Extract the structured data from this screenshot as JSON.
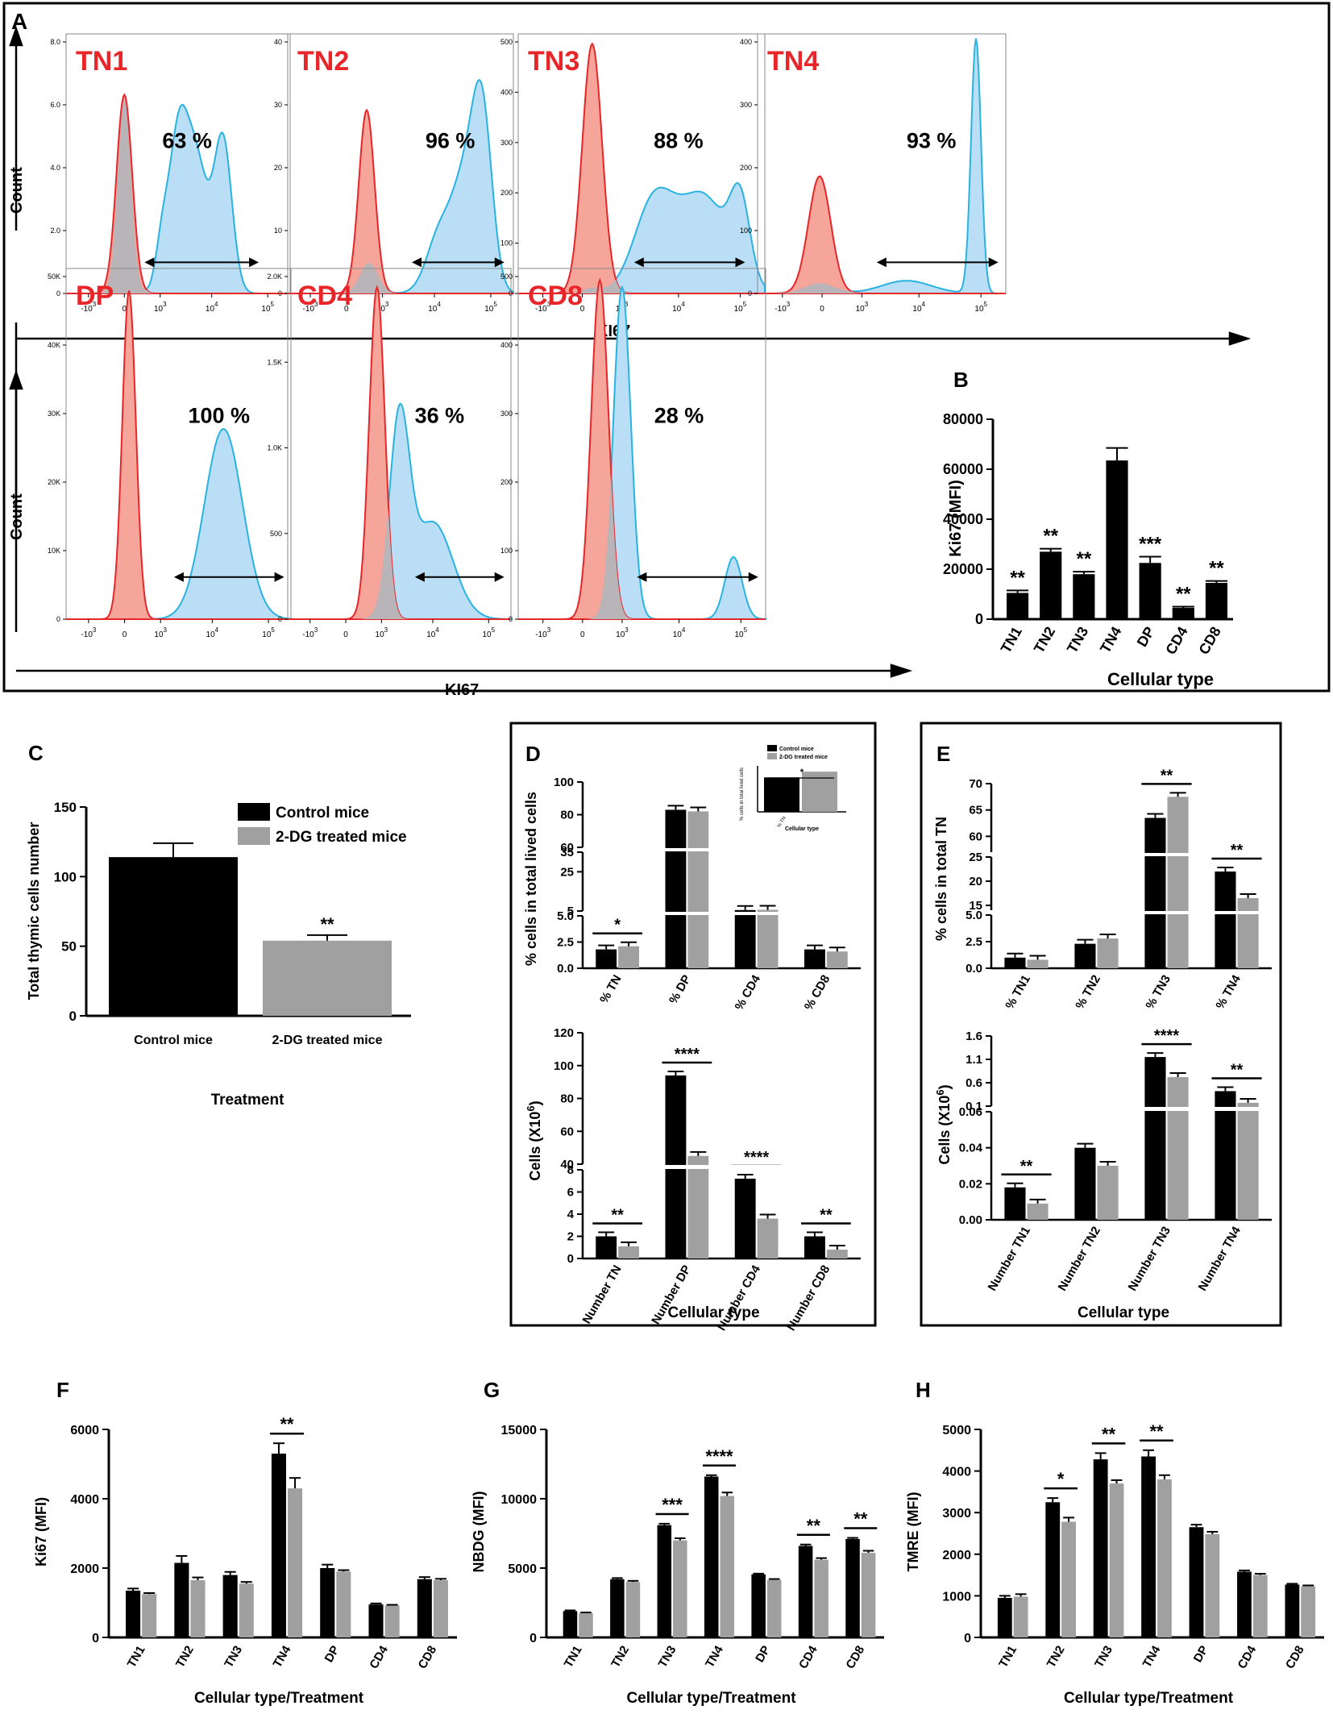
{
  "colors": {
    "red": "#e8262a",
    "red_fill": "#f5a59a",
    "blue": "#29b3e0",
    "blue_fill": "#b9def5",
    "gray_fill": "#b8b4b8",
    "black": "#000000",
    "gray_bar": "#a0a0a0",
    "axis": "#000000"
  },
  "panel_letters": [
    "A",
    "B",
    "C",
    "D",
    "E",
    "F",
    "G",
    "H"
  ],
  "histograms": {
    "x_axis_label": "KI67",
    "y_axis_label": "Count",
    "x_ticks": [
      "-10",
      "0",
      "10",
      "10",
      "10"
    ],
    "x_tick_exps": [
      "3",
      "",
      "3",
      "4",
      "5"
    ],
    "row1": [
      {
        "name": "TN1",
        "pct": "63 %",
        "y_ticks": [
          "0",
          "2.0",
          "4.0",
          "6.0",
          "8.0"
        ]
      },
      {
        "name": "TN2",
        "pct": "96 %",
        "y_ticks": [
          "0",
          "10",
          "20",
          "30",
          "40"
        ]
      },
      {
        "name": "TN3",
        "pct": "88 %",
        "y_ticks": [
          "0",
          "100",
          "200",
          "300",
          "400",
          "500"
        ]
      },
      {
        "name": "TN4",
        "pct": "93 %",
        "y_ticks": [
          "0",
          "100",
          "200",
          "300",
          "400"
        ]
      }
    ],
    "row2": [
      {
        "name": "DP",
        "pct": "100 %",
        "y_ticks": [
          "0",
          "10K",
          "20K",
          "30K",
          "40K",
          "50K"
        ]
      },
      {
        "name": "CD4",
        "pct": "36 %",
        "y_ticks": [
          "0",
          "500",
          "1.0K",
          "1.5K",
          "2.0K"
        ]
      },
      {
        "name": "CD8",
        "pct": "28 %",
        "y_ticks": [
          "0",
          "100",
          "200",
          "300",
          "400",
          "500"
        ]
      }
    ]
  },
  "chart_data": [
    {
      "id": "B",
      "type": "bar",
      "title": "",
      "ylabel": "Ki67 (MFI)",
      "xlabel": "Cellular type",
      "categories": [
        "TN1",
        "TN2",
        "TN3",
        "TN4",
        "DP",
        "CD4",
        "CD8"
      ],
      "values": [
        10500,
        27000,
        18000,
        63500,
        22500,
        4500,
        14500
      ],
      "errors": [
        1000,
        1200,
        1000,
        5000,
        2500,
        500,
        800
      ],
      "significance": [
        "**",
        "**",
        "**",
        "",
        "***",
        "**",
        "**"
      ],
      "ylim": [
        0,
        80000
      ],
      "y_ticks": [
        "0",
        "20000",
        "40000",
        "60000",
        "80000"
      ]
    },
    {
      "id": "C",
      "type": "bar",
      "ylabel": "Total thymic cells number",
      "xlabel": "Treatment",
      "categories": [
        "Control mice",
        "2-DG treated mice"
      ],
      "values": [
        114,
        54
      ],
      "errors": [
        10,
        4
      ],
      "significance": [
        "",
        "**"
      ],
      "ylim": [
        0,
        150
      ],
      "y_ticks": [
        "0",
        "50",
        "100",
        "150"
      ],
      "legend": [
        "Control mice",
        "2-DG treated mice"
      ]
    },
    {
      "id": "D_top",
      "type": "bar",
      "ylabel": "% cells in total lived cells",
      "categories": [
        "% TN",
        "% DP",
        "% CD4",
        "% CD8"
      ],
      "series": [
        {
          "name": "Control mice",
          "values": [
            1.8,
            83,
            5.5,
            1.8
          ]
        },
        {
          "name": "2-DG treated mice",
          "values": [
            2.1,
            82,
            5.6,
            1.6
          ]
        }
      ],
      "significance": [
        "*",
        "",
        "",
        ""
      ],
      "y_ticks": [
        "0.0",
        "2.5",
        "5.0",
        "5",
        "25",
        "35",
        "60",
        "80",
        "100"
      ]
    },
    {
      "id": "D_inset",
      "type": "bar",
      "ylabel": "% cells in total lived cells",
      "xlabel": "Cellular type",
      "categories": [
        "% TN"
      ],
      "series": [
        {
          "name": "Control mice",
          "values": [
            1.8
          ]
        },
        {
          "name": "2-DG treated mice",
          "values": [
            2.1
          ]
        }
      ],
      "significance": [
        "*"
      ],
      "legend": [
        "Control mice",
        "2-DG treated mice"
      ]
    },
    {
      "id": "D_bottom",
      "type": "bar",
      "ylabel": "Cells (X10",
      "ylabel_exp": "6",
      "ylabel_end": ")",
      "xlabel": "Cellular type",
      "categories": [
        "Number TN",
        "Number DP",
        "Number CD4",
        "Number CD8"
      ],
      "series": [
        {
          "name": "Control mice",
          "values": [
            2.0,
            94,
            7.2,
            2.0
          ]
        },
        {
          "name": "2-DG treated mice",
          "values": [
            1.1,
            45,
            3.6,
            0.8
          ]
        }
      ],
      "significance": [
        "**",
        "****",
        "****",
        "**"
      ],
      "y_ticks": [
        "0",
        "2",
        "4",
        "6",
        "8",
        "40",
        "60",
        "80",
        "100",
        "120"
      ]
    },
    {
      "id": "E_top",
      "type": "bar",
      "ylabel": "% cells in total TN",
      "categories": [
        "% TN1",
        "% TN2",
        "% TN3",
        "% TN4"
      ],
      "series": [
        {
          "name": "Control mice",
          "values": [
            1.0,
            2.3,
            63.5,
            22
          ]
        },
        {
          "name": "2-DG treated mice",
          "values": [
            0.8,
            2.8,
            67.5,
            16.5
          ]
        }
      ],
      "significance": [
        "",
        "",
        "**",
        "**"
      ],
      "y_ticks": [
        "0.0",
        "2.5",
        "5.0",
        "15",
        "20",
        "25",
        "60",
        "65",
        "70"
      ]
    },
    {
      "id": "E_bottom",
      "type": "bar",
      "ylabel": "Cells (X10",
      "ylabel_exp": "6",
      "ylabel_end": ")",
      "xlabel": "Cellular type",
      "categories": [
        "Number TN1",
        "Number TN2",
        "Number TN3",
        "Number TN4"
      ],
      "series": [
        {
          "name": "Control mice",
          "values": [
            0.018,
            0.04,
            1.15,
            0.42
          ]
        },
        {
          "name": "2-DG treated mice",
          "values": [
            0.009,
            0.03,
            0.72,
            0.17
          ]
        }
      ],
      "significance": [
        "**",
        "",
        "****",
        "**"
      ],
      "y_ticks": [
        "0.00",
        "0.02",
        "0.04",
        "0.06",
        "0.1",
        "0.6",
        "1.1",
        "1.6"
      ]
    },
    {
      "id": "F",
      "type": "bar",
      "ylabel": "Ki67 (MFI)",
      "xlabel": "Cellular type/Treatment",
      "categories": [
        "TN1",
        "TN2",
        "TN3",
        "TN4",
        "DP",
        "CD4",
        "CD8"
      ],
      "series": [
        {
          "name": "Control mice",
          "values": [
            1350,
            2150,
            1800,
            5300,
            2000,
            950,
            1680
          ]
        },
        {
          "name": "2-DG treated mice",
          "values": [
            1250,
            1650,
            1550,
            4300,
            1900,
            920,
            1650
          ]
        }
      ],
      "errors": [
        [
          60,
          200,
          90,
          300,
          100,
          30,
          60
        ],
        [
          30,
          80,
          50,
          300,
          40,
          20,
          40
        ]
      ],
      "significance": [
        "",
        "",
        "",
        "**",
        "",
        "",
        ""
      ],
      "ylim": [
        0,
        6000
      ],
      "y_ticks": [
        "0",
        "2000",
        "4000",
        "6000"
      ]
    },
    {
      "id": "G",
      "type": "bar",
      "ylabel": "NBDG (MFI)",
      "xlabel": "Cellular type/Treatment",
      "categories": [
        "TN1",
        "TN2",
        "TN3",
        "TN4",
        "DP",
        "CD4",
        "CD8"
      ],
      "series": [
        {
          "name": "Control mice",
          "values": [
            1900,
            4200,
            8100,
            11600,
            4550,
            6600,
            7100
          ]
        },
        {
          "name": "2-DG treated mice",
          "values": [
            1750,
            4000,
            7000,
            10200,
            4150,
            5600,
            6100
          ]
        }
      ],
      "errors": [
        [
          50,
          80,
          100,
          100,
          50,
          100,
          80
        ],
        [
          50,
          80,
          150,
          250,
          60,
          120,
          150
        ]
      ],
      "significance": [
        "",
        "",
        "***",
        "****",
        "",
        "**",
        "**"
      ],
      "ylim": [
        0,
        15000
      ],
      "y_ticks": [
        "0",
        "5000",
        "10000",
        "15000"
      ]
    },
    {
      "id": "H",
      "type": "bar",
      "ylabel": "TMRE (MFI)",
      "xlabel": "Cellular type/Treatment",
      "categories": [
        "TN1",
        "TN2",
        "TN3",
        "TN4",
        "DP",
        "CD4",
        "CD8"
      ],
      "series": [
        {
          "name": "Control mice",
          "values": [
            950,
            3250,
            4280,
            4350,
            2650,
            1580,
            1270
          ]
        },
        {
          "name": "2-DG treated mice",
          "values": [
            980,
            2780,
            3700,
            3800,
            2480,
            1500,
            1230
          ]
        }
      ],
      "errors": [
        [
          50,
          100,
          150,
          150,
          60,
          30,
          20
        ],
        [
          60,
          100,
          80,
          100,
          60,
          30,
          20
        ]
      ],
      "significance": [
        "",
        "*",
        "**",
        "**",
        "",
        "",
        ""
      ],
      "ylim": [
        0,
        5000
      ],
      "y_ticks": [
        "0",
        "1000",
        "2000",
        "3000",
        "4000",
        "5000"
      ]
    }
  ]
}
